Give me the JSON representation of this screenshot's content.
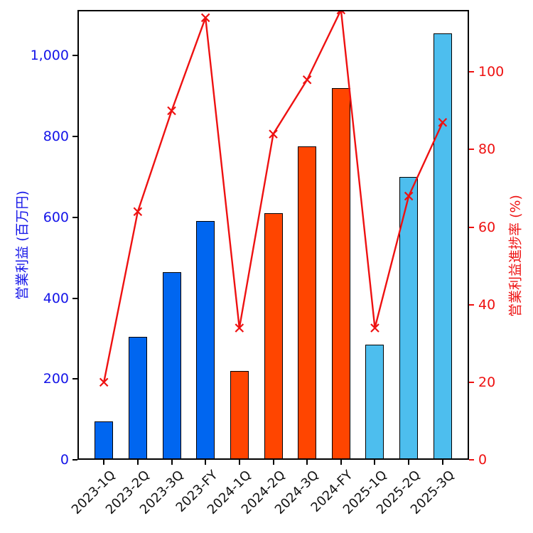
{
  "chart_data": {
    "type": "bar",
    "combo": "bar+line dual-axis",
    "title": "",
    "categories": [
      "2023-1Q",
      "2023-2Q",
      "2023-3Q",
      "2023-FY",
      "2024-1Q",
      "2024-2Q",
      "2024-3Q",
      "2024-FY",
      "2025-1Q",
      "2025-2Q",
      "2025-3Q"
    ],
    "series": [
      {
        "name": "営業利益",
        "type": "bar",
        "axis": "left",
        "values": [
          95,
          305,
          465,
          590,
          220,
          610,
          775,
          920,
          285,
          700,
          1055
        ],
        "bar_colors": [
          "#0066f0",
          "#0066f0",
          "#0066f0",
          "#0066f0",
          "#ff4500",
          "#ff4500",
          "#ff4500",
          "#ff4500",
          "#4dbeee",
          "#4dbeee",
          "#4dbeee"
        ],
        "bar_edge_color": "#000000"
      },
      {
        "name": "営業利益進捗率",
        "type": "line",
        "axis": "right",
        "values": [
          20,
          64,
          90,
          114,
          34,
          84,
          98,
          116,
          34,
          68,
          87
        ],
        "color": "#ee1111",
        "marker": "x"
      }
    ],
    "left_axis": {
      "label": "営業利益 (百万円)",
      "color": "#1414e8",
      "ticks": [
        0,
        200,
        400,
        600,
        800,
        1000
      ],
      "tick_labels": [
        "0",
        "200",
        "400",
        "600",
        "800",
        "1,000"
      ],
      "range": [
        0,
        1113
      ]
    },
    "right_axis": {
      "label": "営業利益進捗率 (%)",
      "color": "#ee1111",
      "ticks": [
        0,
        20,
        40,
        60,
        80,
        100
      ],
      "tick_labels": [
        "0",
        "20",
        "40",
        "60",
        "80",
        "100"
      ],
      "range": [
        0,
        116
      ]
    },
    "x_axis": {
      "label": "",
      "tick_label_color": "#111111",
      "tick_rotation_deg": 45,
      "range": [
        -0.78,
        10.78
      ]
    },
    "grid": false,
    "legend": "none"
  }
}
